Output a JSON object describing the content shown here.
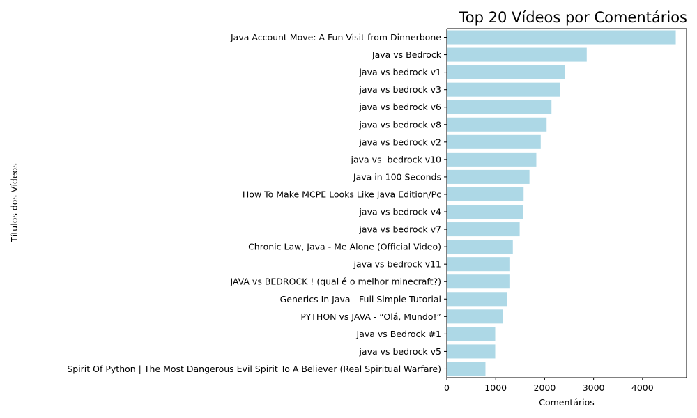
{
  "chart_data": {
    "type": "bar",
    "orientation": "horizontal",
    "title": "Top 20 Vídeos por Comentários",
    "xlabel": "Comentários",
    "ylabel": "Títulos dos Vídeos",
    "xlim": [
      0,
      4900
    ],
    "xticks": [
      0,
      1000,
      2000,
      3000,
      4000
    ],
    "bar_color": "#add8e6",
    "grid": false,
    "categories": [
      "Java Account Move: A Fun Visit from Dinnerbone",
      "Java vs Bedrock",
      "java vs bedrock v1",
      "java vs bedrock v3",
      "java vs bedrock v6",
      "java vs bedrock v8",
      "java vs bedrock v2",
      "java vs  bedrock v10",
      "Java in 100 Seconds",
      "How To Make MCPE Looks Like Java Edition/Pc",
      "java vs bedrock v4",
      "java vs bedrock v7",
      "Chronic Law, Java - Me Alone (Official Video)",
      "java vs bedrock v11",
      "JAVA vs BEDROCK ! (qual é o melhor minecraft?)",
      "Generics In Java - Full Simple Tutorial",
      "PYTHON vs JAVA - “Olá, Mundo!”",
      "Java vs Bedrock #1",
      "java vs bedrock v5",
      "Spirit Of Python | The Most Dangerous Evil Spirit To A Believer (Real Spiritual Warfare)"
    ],
    "values": [
      4680,
      2860,
      2420,
      2310,
      2140,
      2040,
      1920,
      1830,
      1690,
      1570,
      1560,
      1490,
      1350,
      1280,
      1280,
      1230,
      1140,
      990,
      990,
      790
    ]
  }
}
